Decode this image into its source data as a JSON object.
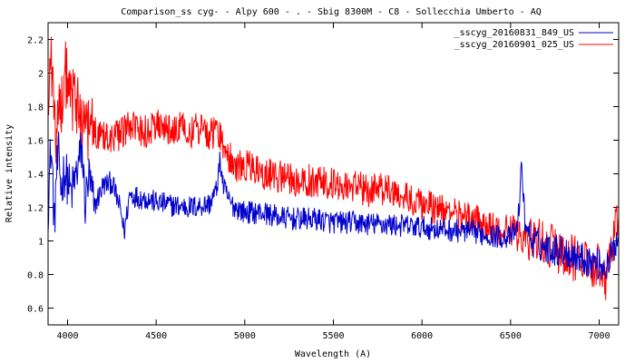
{
  "chart_data": {
    "type": "line",
    "title": "Comparison_ss cyg- - Alpy 600 - . - Sbig 8300M -  C8  - Sollecchia Umberto - AQ",
    "xlabel": "Wavelength (A)",
    "ylabel": "Relative intensity",
    "xlim": [
      3890,
      7110
    ],
    "ylim": [
      0.5,
      2.3
    ],
    "x_ticks": [
      4000,
      4500,
      5000,
      5500,
      6000,
      6500,
      7000
    ],
    "x_tick_labels": [
      "4000",
      "4500",
      "5000",
      "5500",
      "6000",
      "6500",
      "7000"
    ],
    "y_ticks": [
      0.6,
      0.8,
      1.0,
      1.2,
      1.4,
      1.6,
      1.8,
      2.0,
      2.2
    ],
    "y_tick_labels": [
      "0.6",
      "0.8",
      "1",
      "1.2",
      "1.4",
      "1.6",
      "1.8",
      "2",
      "2.2"
    ],
    "legend_position": "top-right",
    "series": [
      {
        "name": "_sscyg_20160831_849_US",
        "color": "#0000cc",
        "x": [
          3890,
          3905,
          3915,
          3925,
          3935,
          3950,
          3965,
          3980,
          4000,
          4020,
          4050,
          4080,
          4100,
          4120,
          4150,
          4200,
          4250,
          4300,
          4320,
          4350,
          4400,
          4450,
          4500,
          4600,
          4700,
          4800,
          4840,
          4861,
          4880,
          4920,
          5000,
          5100,
          5200,
          5300,
          5400,
          5500,
          5600,
          5700,
          5800,
          5900,
          6000,
          6100,
          6200,
          6300,
          6400,
          6500,
          6540,
          6563,
          6580,
          6620,
          6700,
          6800,
          6900,
          7000,
          7050,
          7080,
          7110
        ],
        "y": [
          1.2,
          1.55,
          1.42,
          1.05,
          1.38,
          1.5,
          1.3,
          1.42,
          1.36,
          1.28,
          1.4,
          1.55,
          1.22,
          1.38,
          1.2,
          1.33,
          1.35,
          1.18,
          1.05,
          1.28,
          1.26,
          1.25,
          1.23,
          1.21,
          1.2,
          1.22,
          1.3,
          1.48,
          1.32,
          1.22,
          1.17,
          1.17,
          1.14,
          1.13,
          1.13,
          1.11,
          1.11,
          1.1,
          1.1,
          1.09,
          1.08,
          1.07,
          1.06,
          1.05,
          1.03,
          1.02,
          1.08,
          1.46,
          1.12,
          1.0,
          0.96,
          0.94,
          0.9,
          0.86,
          0.84,
          0.95,
          1.05
        ]
      },
      {
        "name": "_sscyg_20160901_025_US",
        "color": "#ff0000",
        "x": [
          3890,
          3905,
          3920,
          3935,
          3950,
          3965,
          3980,
          4000,
          4020,
          4040,
          4060,
          4080,
          4100,
          4150,
          4200,
          4250,
          4300,
          4350,
          4400,
          4450,
          4500,
          4550,
          4600,
          4650,
          4700,
          4750,
          4800,
          4850,
          4880,
          4900,
          4950,
          5000,
          5050,
          5100,
          5200,
          5300,
          5400,
          5500,
          5600,
          5700,
          5800,
          5900,
          6000,
          6100,
          6200,
          6300,
          6400,
          6500,
          6563,
          6600,
          6700,
          6800,
          6900,
          7000,
          7040,
          7070,
          7100
        ],
        "y": [
          1.8,
          2.1,
          1.85,
          1.6,
          1.95,
          1.75,
          2.05,
          1.9,
          1.85,
          1.8,
          1.82,
          1.74,
          1.7,
          1.65,
          1.64,
          1.62,
          1.63,
          1.68,
          1.65,
          1.65,
          1.7,
          1.66,
          1.64,
          1.7,
          1.65,
          1.68,
          1.64,
          1.66,
          1.55,
          1.52,
          1.45,
          1.46,
          1.43,
          1.4,
          1.38,
          1.36,
          1.36,
          1.34,
          1.33,
          1.3,
          1.31,
          1.27,
          1.22,
          1.18,
          1.15,
          1.12,
          1.08,
          1.06,
          1.02,
          1.02,
          0.98,
          0.92,
          0.88,
          0.85,
          0.78,
          0.9,
          1.12
        ]
      }
    ]
  }
}
